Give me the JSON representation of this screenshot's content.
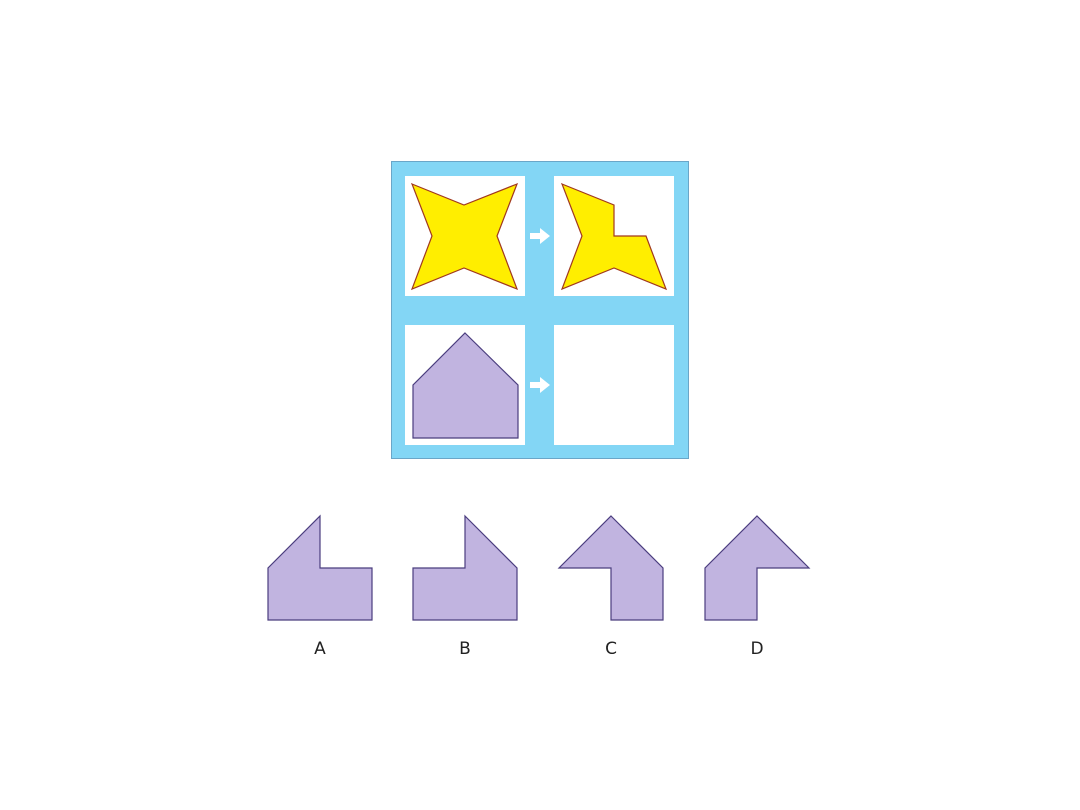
{
  "puzzle": {
    "panel_color": "#83d6f5",
    "cells": [
      {
        "id": "top-left",
        "shape": "four-point-star",
        "fill": "#ffee00",
        "stroke": "#a0381e"
      },
      {
        "id": "top-right",
        "shape": "cut-star",
        "fill": "#ffee00",
        "stroke": "#a0381e"
      },
      {
        "id": "bottom-left",
        "shape": "house-pentagon",
        "fill": "#c1b4e0",
        "stroke": "#4a3d7e"
      },
      {
        "id": "bottom-right",
        "shape": "empty-answer-slot"
      }
    ],
    "arrow_icon": "right-arrow-icon"
  },
  "options": [
    {
      "label": "A",
      "shape": "l-notch-top-right",
      "fill": "#c1b4e0",
      "stroke": "#4a3d7e"
    },
    {
      "label": "B",
      "shape": "l-notch-top-left",
      "fill": "#c1b4e0",
      "stroke": "#4a3d7e"
    },
    {
      "label": "C",
      "shape": "arrow-notch-bottom-left",
      "fill": "#c1b4e0",
      "stroke": "#4a3d7e"
    },
    {
      "label": "D",
      "shape": "arrow-notch-bottom-right",
      "fill": "#c1b4e0",
      "stroke": "#4a3d7e"
    }
  ]
}
